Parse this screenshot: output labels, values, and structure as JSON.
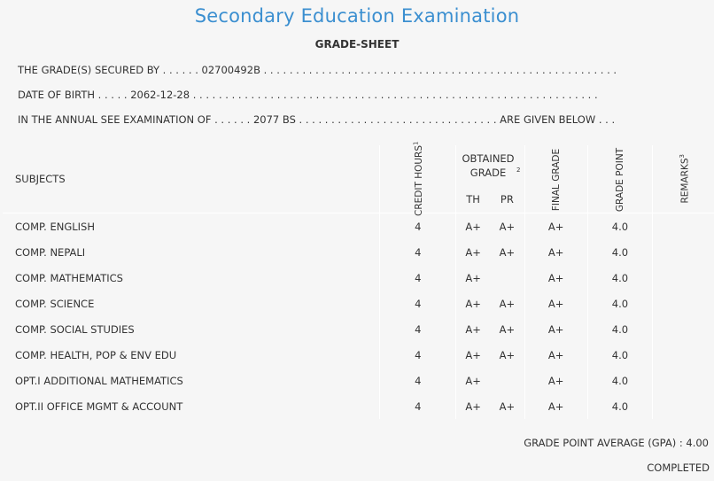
{
  "header": {
    "title": "Secondary Education Examination",
    "subtitle": "GRADE-SHEET"
  },
  "info": {
    "line1": "THE GRADE(S) SECURED BY . . . . . . 02700492B . . . . . . . . . . . . . . . . . . . . . . . . . . . . . . . . . . . . . . . . . . . . . . . . . . . . . . .",
    "line2": "DATE OF BIRTH . . . . . 2062-12-28 . . . . . . . . . . . . . . . . . . . . . . . . . . . . . . . . . . . . . . . . . . . . . . . . . . . . . . . . . . . . . . .",
    "line3": "IN THE ANNUAL SEE EXAMINATION OF . . . . . . 2077 BS . . . . . . . . . . . . . . . . . . . . . . . . . . . . . . . ARE GIVEN BELOW . . ."
  },
  "table": {
    "col_subjects": "SUBJECTS",
    "col_credit_hours": "CREDIT HOURS",
    "col_credit_sup": "1",
    "col_obtained_grade": "OBTAINED GRADE",
    "col_obtained_sup": "2",
    "col_th": "TH",
    "col_pr": "PR",
    "col_final_grade": "FINAL GRADE",
    "col_grade_point": "GRADE POINT",
    "col_remarks": "REMARKS",
    "col_remarks_sup": "3",
    "rows": [
      {
        "subject": "COMP. ENGLISH",
        "credit": "4",
        "th": "A+",
        "pr": "A+",
        "final": "A+",
        "gp": "4.0",
        "remarks": ""
      },
      {
        "subject": "COMP. NEPALI",
        "credit": "4",
        "th": "A+",
        "pr": "A+",
        "final": "A+",
        "gp": "4.0",
        "remarks": ""
      },
      {
        "subject": "COMP. MATHEMATICS",
        "credit": "4",
        "th": "A+",
        "pr": "",
        "final": "A+",
        "gp": "4.0",
        "remarks": ""
      },
      {
        "subject": "COMP. SCIENCE",
        "credit": "4",
        "th": "A+",
        "pr": "A+",
        "final": "A+",
        "gp": "4.0",
        "remarks": ""
      },
      {
        "subject": "COMP. SOCIAL STUDIES",
        "credit": "4",
        "th": "A+",
        "pr": "A+",
        "final": "A+",
        "gp": "4.0",
        "remarks": ""
      },
      {
        "subject": "COMP. HEALTH, POP & ENV EDU",
        "credit": "4",
        "th": "A+",
        "pr": "A+",
        "final": "A+",
        "gp": "4.0",
        "remarks": ""
      },
      {
        "subject": "OPT.I ADDITIONAL MATHEMATICS",
        "credit": "4",
        "th": "A+",
        "pr": "",
        "final": "A+",
        "gp": "4.0",
        "remarks": ""
      },
      {
        "subject": "OPT.II OFFICE MGMT & ACCOUNT",
        "credit": "4",
        "th": "A+",
        "pr": "A+",
        "final": "A+",
        "gp": "4.0",
        "remarks": ""
      }
    ]
  },
  "footer": {
    "gpa": "GRADE POINT AVERAGE (GPA) : 4.00",
    "status": "COMPLETED"
  }
}
